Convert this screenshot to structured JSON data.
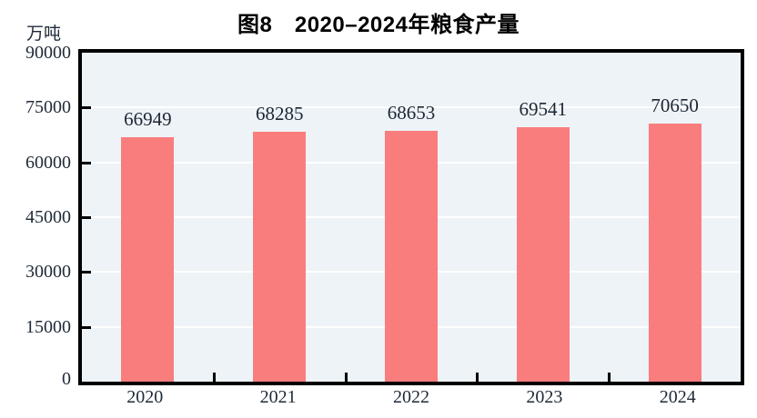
{
  "title": "图8　2020–2024年粮食产量",
  "unit_label": "万吨",
  "colors": {
    "bar": "#fa7d7d",
    "plot_background": "#edf3f7",
    "gridline": "#ffffff",
    "axis": "#000000",
    "text": "#1f2a38",
    "title_text": "#000000"
  },
  "chart_data": {
    "type": "bar",
    "title": "图8　2020–2024年粮食产量",
    "unit": "万吨",
    "categories": [
      "2020",
      "2021",
      "2022",
      "2023",
      "2024"
    ],
    "values": [
      66949,
      68285,
      68653,
      69541,
      70650
    ],
    "xlabel": "",
    "ylabel": "万吨",
    "ylim": [
      0,
      90000
    ],
    "yticks": [
      0,
      15000,
      30000,
      45000,
      60000,
      75000,
      90000
    ],
    "ytick_labels_top_to_bottom": [
      "90000",
      "75000",
      "60000",
      "45000",
      "30000",
      "15000",
      "0"
    ],
    "grid": true,
    "gridline_color": "#ffffff",
    "legend": false,
    "bar_color": "#fa7d7d",
    "plot_background": "#edf3f7",
    "data_labels_shown": true
  }
}
